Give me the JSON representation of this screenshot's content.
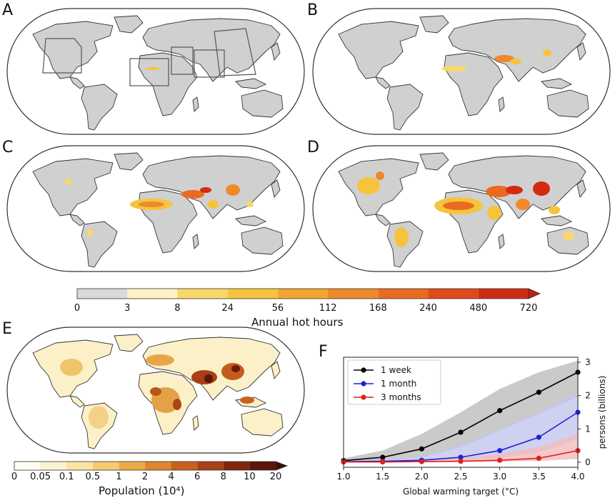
{
  "panels": {
    "a": "A",
    "b": "B",
    "c": "C",
    "d": "D",
    "e": "E",
    "f": "F"
  },
  "colors": {
    "land": "#d0d0d0",
    "coast": "#333333",
    "hot_low": "#f6c33c",
    "hot_mid": "#ef8a1f",
    "hot_high": "#d42a12",
    "pop_low": "#fbeec2",
    "pop_mid": "#e3a03c",
    "pop_high": "#7a1a0a"
  },
  "hot_colorbar": {
    "title": "Annual hot hours",
    "ticks": [
      "0",
      "3",
      "8",
      "24",
      "56",
      "112",
      "168",
      "240",
      "480",
      "720"
    ],
    "colors": [
      "#d9d9d9",
      "#fdf1c4",
      "#f9d86b",
      "#f6c33c",
      "#f1a532",
      "#ee8a2a",
      "#e96a20",
      "#e04a1a",
      "#cf2a14"
    ]
  },
  "pop_colorbar": {
    "title": "Population (10⁴)",
    "ticks": [
      "0",
      "0.05",
      "0.1",
      "0.5",
      "1",
      "2",
      "4",
      "6",
      "8",
      "10",
      "20"
    ],
    "colors": [
      "#fefcf0",
      "#fdf2cf",
      "#fbe3a5",
      "#f6cb6f",
      "#ecab47",
      "#df8530",
      "#c9601f",
      "#a84015",
      "#80260d",
      "#5c1508"
    ]
  },
  "chart_data": {
    "type": "line",
    "xlabel": "Global warming target (°C)",
    "ylabel": "persons (billions)",
    "x": [
      1.0,
      1.5,
      2.0,
      2.5,
      3.0,
      3.5,
      4.0
    ],
    "xticks": [
      "1.0",
      "1.5",
      "2.0",
      "2.5",
      "3.0",
      "3.5",
      "4.0"
    ],
    "yticks": [
      "0",
      "1",
      "2",
      "3"
    ],
    "xlim": [
      1.0,
      4.0
    ],
    "ylim": [
      -0.15,
      3.15
    ],
    "legend_position": "top-left",
    "series": [
      {
        "name": "1 week",
        "color": "#000000",
        "band": "#bdbdbd",
        "values": [
          0.05,
          0.15,
          0.4,
          0.9,
          1.55,
          2.1,
          2.7
        ],
        "lower": [
          0.02,
          0.05,
          0.15,
          0.45,
          0.95,
          1.45,
          1.95
        ],
        "upper": [
          0.12,
          0.35,
          0.85,
          1.5,
          2.2,
          2.7,
          3.05
        ]
      },
      {
        "name": "1 month",
        "color": "#1f1fe0",
        "band": "#c3c6ee",
        "values": [
          0.02,
          0.03,
          0.06,
          0.15,
          0.35,
          0.75,
          1.5
        ],
        "lower": [
          0.0,
          0.0,
          0.02,
          0.05,
          0.12,
          0.3,
          0.7
        ],
        "upper": [
          0.05,
          0.08,
          0.2,
          0.5,
          1.0,
          1.5,
          2.1
        ]
      },
      {
        "name": "3 months",
        "color": "#e01f1f",
        "band": "#f2bcbc",
        "values": [
          0.01,
          0.01,
          0.02,
          0.03,
          0.06,
          0.12,
          0.35
        ],
        "lower": [
          0.0,
          0.0,
          0.0,
          0.01,
          0.02,
          0.04,
          0.1
        ],
        "upper": [
          0.03,
          0.04,
          0.06,
          0.12,
          0.25,
          0.45,
          0.85
        ]
      }
    ]
  }
}
